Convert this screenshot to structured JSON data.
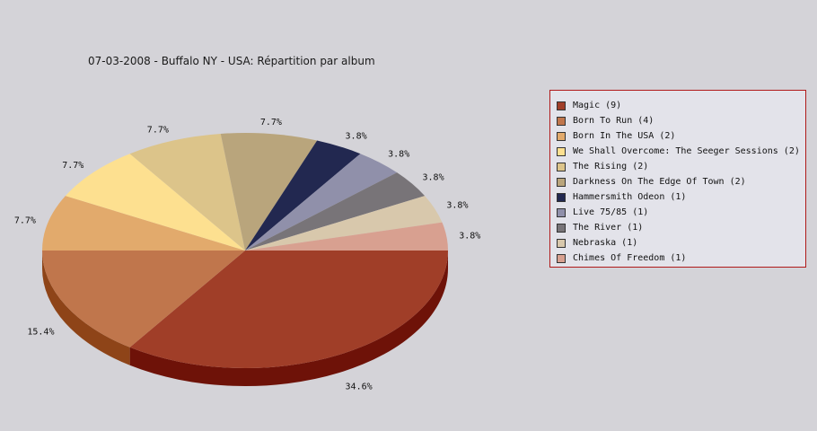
{
  "chart_data": {
    "type": "pie",
    "title": "07-03-2008 - Buffalo NY - USA:  Répartition par album",
    "slices": [
      {
        "label": "Magic (9)",
        "value": 9,
        "pct": "34.6%",
        "color": "#a03e28",
        "side": "#6e1208"
      },
      {
        "label": "Born To Run (4)",
        "value": 4,
        "pct": "15.4%",
        "color": "#c0764c",
        "side": "#8e4418"
      },
      {
        "label": "Born In The USA (2)",
        "value": 2,
        "pct": "7.7%",
        "color": "#e2aa6c",
        "side": "#a87236"
      },
      {
        "label": "We Shall Overcome: The Seeger Sessions (2)",
        "value": 2,
        "pct": "7.7%",
        "color": "#fde090",
        "side": "#c4a858"
      },
      {
        "label": "The Rising (2)",
        "value": 2,
        "pct": "7.7%",
        "color": "#dcc48a",
        "side": "#a68e52"
      },
      {
        "label": "Darkness On The Edge Of Town (2)",
        "value": 2,
        "pct": "7.7%",
        "color": "#b9a57c",
        "side": "#857149"
      },
      {
        "label": "Hammersmith Odeon  (1)",
        "value": 1,
        "pct": "3.8%",
        "color": "#222850",
        "side": "#111428"
      },
      {
        "label": "Live 75/85 (1)",
        "value": 1,
        "pct": "3.8%",
        "color": "#9090aa",
        "side": "#626278"
      },
      {
        "label": "The River (1)",
        "value": 1,
        "pct": "3.8%",
        "color": "#787478",
        "side": "#4e4a4e"
      },
      {
        "label": "Nebraska (1)",
        "value": 1,
        "pct": "3.8%",
        "color": "#d8c8ac",
        "side": "#a8987c"
      },
      {
        "label": "Chimes Of Freedom (1)",
        "value": 1,
        "pct": "3.8%",
        "color": "#d8a090",
        "side": "#a87060"
      }
    ],
    "legend_position": "right"
  }
}
